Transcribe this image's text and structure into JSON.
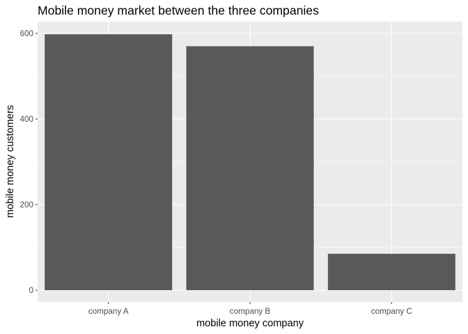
{
  "chart_data": {
    "type": "bar",
    "title": "Mobile money market between the three companies",
    "xlabel": "mobile money company",
    "ylabel": "mobile money customers",
    "categories": [
      "company A",
      "company B",
      "company C"
    ],
    "values": [
      598,
      570,
      85
    ],
    "ylim": [
      0,
      630
    ],
    "yticks": [
      0,
      200,
      400,
      600
    ],
    "grid": true,
    "legend": "none",
    "colors": {
      "panel_background": "#ebebeb",
      "grid_major": "#ffffff",
      "bar_fill": "#595959",
      "tick_text": "#4d4d4d",
      "tick_mark": "#333333"
    }
  }
}
